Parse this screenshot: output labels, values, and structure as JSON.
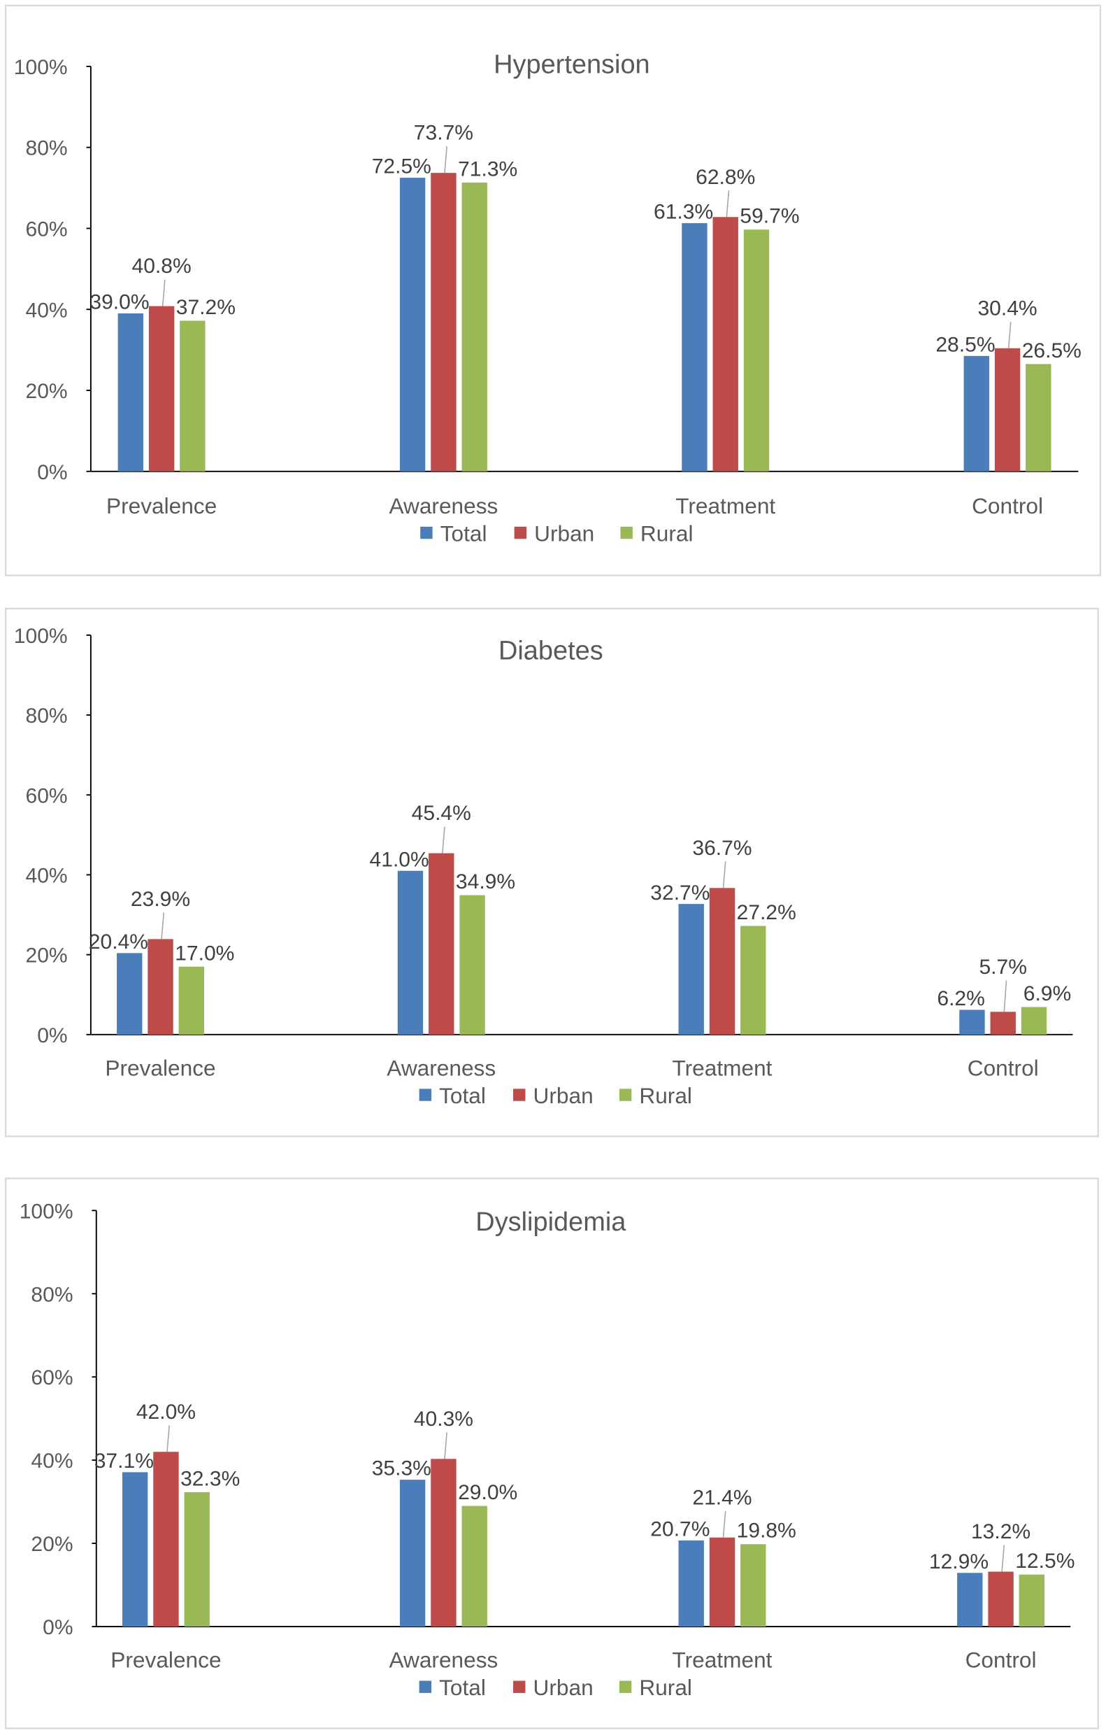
{
  "colors": {
    "Total": "#4a7ebb",
    "Urban": "#be4b48",
    "Rural": "#98b954",
    "text": "#595959",
    "border": "#d9d9d9"
  },
  "chart_data": [
    {
      "type": "bar",
      "title": "Hypertension",
      "categories": [
        "Prevalence",
        "Awareness",
        "Treatment",
        "Control"
      ],
      "series": [
        {
          "name": "Total",
          "values": [
            39.0,
            72.5,
            61.3,
            28.5
          ]
        },
        {
          "name": "Urban",
          "values": [
            40.8,
            73.7,
            62.8,
            30.4
          ]
        },
        {
          "name": "Rural",
          "values": [
            37.2,
            71.3,
            59.7,
            26.5
          ]
        }
      ],
      "yticks": [
        "0%",
        "20%",
        "40%",
        "60%",
        "80%",
        "100%"
      ],
      "ylim": [
        0,
        100
      ],
      "xlabel": "",
      "ylabel": "",
      "legend": "bottom",
      "grid": false
    },
    {
      "type": "bar",
      "title": "Diabetes",
      "categories": [
        "Prevalence",
        "Awareness",
        "Treatment",
        "Control"
      ],
      "series": [
        {
          "name": "Total",
          "values": [
            20.4,
            41.0,
            32.7,
            6.2
          ]
        },
        {
          "name": "Urban",
          "values": [
            23.9,
            45.4,
            36.7,
            5.7
          ]
        },
        {
          "name": "Rural",
          "values": [
            17.0,
            34.9,
            27.2,
            6.9
          ]
        }
      ],
      "yticks": [
        "0%",
        "20%",
        "40%",
        "60%",
        "80%",
        "100%"
      ],
      "ylim": [
        0,
        100
      ],
      "xlabel": "",
      "ylabel": "",
      "legend": "bottom",
      "grid": false
    },
    {
      "type": "bar",
      "title": "Dyslipidemia",
      "categories": [
        "Prevalence",
        "Awareness",
        "Treatment",
        "Control"
      ],
      "series": [
        {
          "name": "Total",
          "values": [
            37.1,
            35.3,
            20.7,
            12.9
          ]
        },
        {
          "name": "Urban",
          "values": [
            42.0,
            40.3,
            21.4,
            13.2
          ]
        },
        {
          "name": "Rural",
          "values": [
            32.3,
            29.0,
            19.8,
            12.5
          ]
        }
      ],
      "yticks": [
        "0%",
        "20%",
        "40%",
        "60%",
        "80%",
        "100%"
      ],
      "ylim": [
        0,
        100
      ],
      "xlabel": "",
      "ylabel": "",
      "legend": "bottom",
      "grid": false
    }
  ]
}
